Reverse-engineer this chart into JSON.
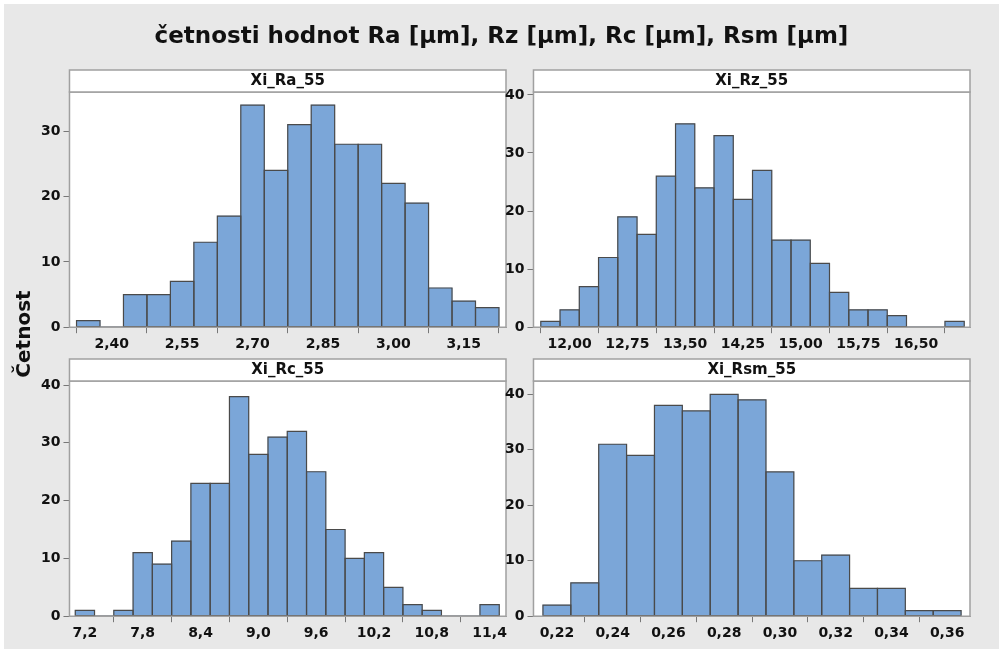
{
  "chart_data": [
    {
      "type": "histogram",
      "title": "četnosti hodnot Ra [µm], Rz [µm], Rc [µm], Rsm [µm]",
      "subtitle": "Xi_Ra_55",
      "ylabel": "Četnost",
      "color": "#7ba6d8",
      "grid": false,
      "bins": [
        2.325,
        2.375,
        2.425,
        2.475,
        2.525,
        2.575,
        2.625,
        2.675,
        2.725,
        2.775,
        2.825,
        2.875,
        2.925,
        2.975,
        3.025,
        3.075,
        3.125,
        3.175,
        3.225
      ],
      "values": [
        1,
        0,
        5,
        5,
        7,
        13,
        17,
        34,
        24,
        31,
        34,
        28,
        28,
        22,
        19,
        6,
        4,
        3
      ],
      "xlim": [
        2.31,
        3.24
      ],
      "xticks": [
        {
          "value": 2.4,
          "label": "2,40"
        },
        {
          "value": 2.55,
          "label": "2,55"
        },
        {
          "value": 2.7,
          "label": "2,70"
        },
        {
          "value": 2.85,
          "label": "2,85"
        },
        {
          "value": 3.0,
          "label": "3,00"
        },
        {
          "value": 3.15,
          "label": "3,15"
        }
      ],
      "ylim": [
        0,
        36
      ],
      "yticks": [
        0,
        10,
        20,
        30
      ]
    },
    {
      "type": "histogram",
      "subtitle": "Xi_Rz_55",
      "color": "#7ba6d8",
      "grid": false,
      "bins": [
        11.625,
        11.875,
        12.125,
        12.375,
        12.625,
        12.875,
        13.125,
        13.375,
        13.625,
        13.875,
        14.125,
        14.375,
        14.625,
        14.875,
        15.125,
        15.375,
        15.625,
        15.875,
        16.125,
        16.375,
        16.625,
        16.875,
        17.125
      ],
      "values": [
        1,
        3,
        7,
        12,
        19,
        16,
        26,
        35,
        24,
        33,
        22,
        27,
        15,
        15,
        11,
        6,
        3,
        3,
        2,
        0,
        0,
        1
      ],
      "xlim": [
        11.53,
        17.2
      ],
      "xticks": [
        {
          "value": 12,
          "label": "12,00"
        },
        {
          "value": 12.75,
          "label": "12,75"
        },
        {
          "value": 13.5,
          "label": "13,50"
        },
        {
          "value": 14.25,
          "label": "14,25"
        },
        {
          "value": 15,
          "label": "15,00"
        },
        {
          "value": 15.75,
          "label": "15,75"
        },
        {
          "value": 16.5,
          "label": "16,50"
        }
      ],
      "ylim": [
        0,
        40.5
      ],
      "yticks": [
        0,
        10,
        20,
        30,
        40
      ]
    },
    {
      "type": "histogram",
      "subtitle": "Xi_Rc_55",
      "color": "#7ba6d8",
      "grid": false,
      "bins": [
        7.1,
        7.3,
        7.5,
        7.7,
        7.9,
        8.1,
        8.3,
        8.5,
        8.7,
        8.9,
        9.1,
        9.3,
        9.5,
        9.7,
        9.9,
        10.1,
        10.3,
        10.5,
        10.7,
        10.9,
        11.1,
        11.3,
        11.5
      ],
      "values": [
        1,
        0,
        1,
        11,
        9,
        13,
        23,
        23,
        38,
        28,
        31,
        32,
        25,
        15,
        10,
        11,
        5,
        2,
        1,
        0,
        0,
        2
      ],
      "xlim": [
        7.04,
        11.57
      ],
      "xticks": [
        {
          "value": 7.2,
          "label": "7,2"
        },
        {
          "value": 7.8,
          "label": "7,8"
        },
        {
          "value": 8.4,
          "label": "8,4"
        },
        {
          "value": 9.0,
          "label": "9,0"
        },
        {
          "value": 9.6,
          "label": "9,6"
        },
        {
          "value": 10.2,
          "label": "10,2"
        },
        {
          "value": 10.8,
          "label": "10,8"
        },
        {
          "value": 11.4,
          "label": "11,4"
        }
      ],
      "ylim": [
        0,
        40.7
      ],
      "yticks": [
        0,
        10,
        20,
        30,
        40
      ]
    },
    {
      "type": "histogram",
      "subtitle": "Xi_Rsm_55",
      "color": "#7ba6d8",
      "grid": false,
      "bins": [
        0.215,
        0.225,
        0.235,
        0.245,
        0.255,
        0.265,
        0.275,
        0.285,
        0.295,
        0.305,
        0.315,
        0.325,
        0.335,
        0.345,
        0.355,
        0.365
      ],
      "values": [
        2,
        6,
        31,
        29,
        38,
        37,
        40,
        39,
        26,
        10,
        11,
        5,
        5,
        1,
        1
      ],
      "xlim": [
        0.2116,
        0.3682
      ],
      "xticks": [
        {
          "value": 0.22,
          "label": "0,22"
        },
        {
          "value": 0.24,
          "label": "0,24"
        },
        {
          "value": 0.26,
          "label": "0,26"
        },
        {
          "value": 0.28,
          "label": "0,28"
        },
        {
          "value": 0.3,
          "label": "0,30"
        },
        {
          "value": 0.32,
          "label": "0,32"
        },
        {
          "value": 0.34,
          "label": "0,34"
        },
        {
          "value": 0.36,
          "label": "0,36"
        }
      ],
      "ylim": [
        0,
        42.4
      ],
      "yticks": [
        0,
        10,
        20,
        30,
        40
      ]
    }
  ]
}
